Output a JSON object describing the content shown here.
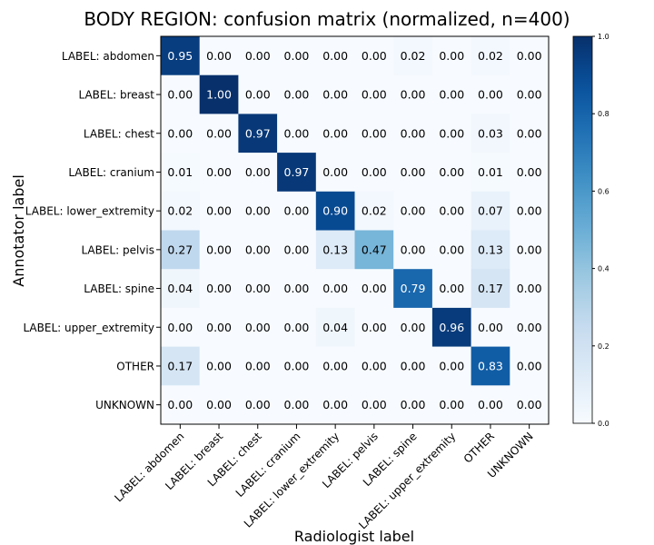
{
  "chart_data": {
    "type": "heatmap",
    "title": "BODY REGION: confusion matrix (normalized, n=400)",
    "xlabel": "Radiologist label",
    "ylabel": "Annotator label",
    "row_labels": [
      "LABEL: abdomen",
      "LABEL: breast",
      "LABEL: chest",
      "LABEL: cranium",
      "LABEL: lower_extremity",
      "LABEL: pelvis",
      "LABEL: spine",
      "LABEL: upper_extremity",
      "OTHER",
      "UNKNOWN"
    ],
    "col_labels": [
      "LABEL: abdomen",
      "LABEL: breast",
      "LABEL: chest",
      "LABEL: cranium",
      "LABEL: lower_extremity",
      "LABEL: pelvis",
      "LABEL: spine",
      "LABEL: upper_extremity",
      "OTHER",
      "UNKNOWN"
    ],
    "values": [
      [
        0.95,
        0.0,
        0.0,
        0.0,
        0.0,
        0.0,
        0.02,
        0.0,
        0.02,
        0.0
      ],
      [
        0.0,
        1.0,
        0.0,
        0.0,
        0.0,
        0.0,
        0.0,
        0.0,
        0.0,
        0.0
      ],
      [
        0.0,
        0.0,
        0.97,
        0.0,
        0.0,
        0.0,
        0.0,
        0.0,
        0.03,
        0.0
      ],
      [
        0.01,
        0.0,
        0.0,
        0.97,
        0.0,
        0.0,
        0.0,
        0.0,
        0.01,
        0.0
      ],
      [
        0.02,
        0.0,
        0.0,
        0.0,
        0.9,
        0.02,
        0.0,
        0.0,
        0.07,
        0.0
      ],
      [
        0.27,
        0.0,
        0.0,
        0.0,
        0.13,
        0.47,
        0.0,
        0.0,
        0.13,
        0.0
      ],
      [
        0.04,
        0.0,
        0.0,
        0.0,
        0.0,
        0.0,
        0.79,
        0.0,
        0.17,
        0.0
      ],
      [
        0.0,
        0.0,
        0.0,
        0.0,
        0.04,
        0.0,
        0.0,
        0.96,
        0.0,
        0.0
      ],
      [
        0.17,
        0.0,
        0.0,
        0.0,
        0.0,
        0.0,
        0.0,
        0.0,
        0.83,
        0.0
      ],
      [
        0.0,
        0.0,
        0.0,
        0.0,
        0.0,
        0.0,
        0.0,
        0.0,
        0.0,
        0.0
      ]
    ],
    "colorbar": {
      "range": [
        0.0,
        1.0
      ],
      "ticks": [
        "0.0",
        "0.2",
        "0.4",
        "0.6",
        "0.8",
        "1.0"
      ],
      "colormap": "Blues",
      "color_low": "#f7fbff",
      "color_high": "#08306b"
    }
  }
}
